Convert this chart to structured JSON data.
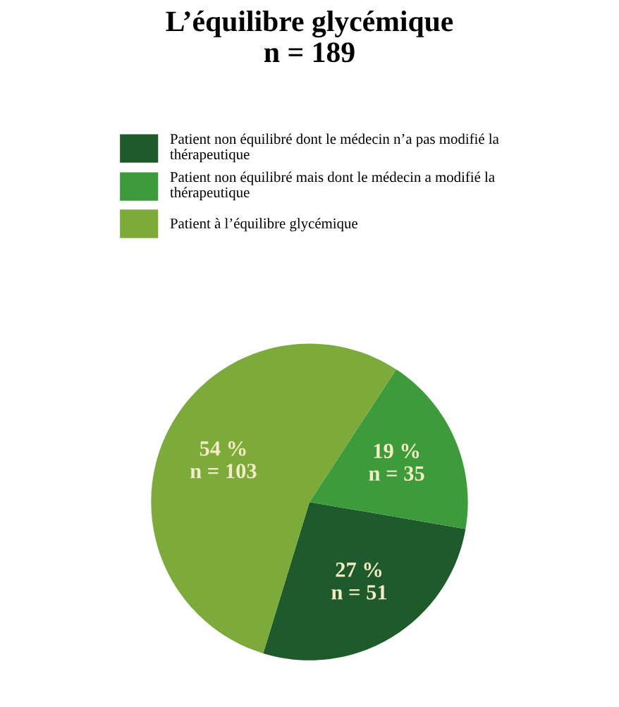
{
  "chart_data": {
    "type": "pie",
    "title": "L’équilibre glycémique\nn = 189",
    "categories": [
      "Patient non équilibré dont le médecin n’a pas modifié la\nthérapeutique",
      "Patient non équilibré mais dont le médecin a modifié la\nthérapeutique",
      "Patient à l’équilibre glycémique"
    ],
    "values": [
      51,
      35,
      103
    ],
    "colors": [
      "#1f5a2c",
      "#3d9b3c",
      "#7cab3b"
    ],
    "value_labels": [
      "27 %\nn = 51",
      "19 %\nn = 35",
      "54 %\nn = 103"
    ],
    "legend": "top"
  }
}
